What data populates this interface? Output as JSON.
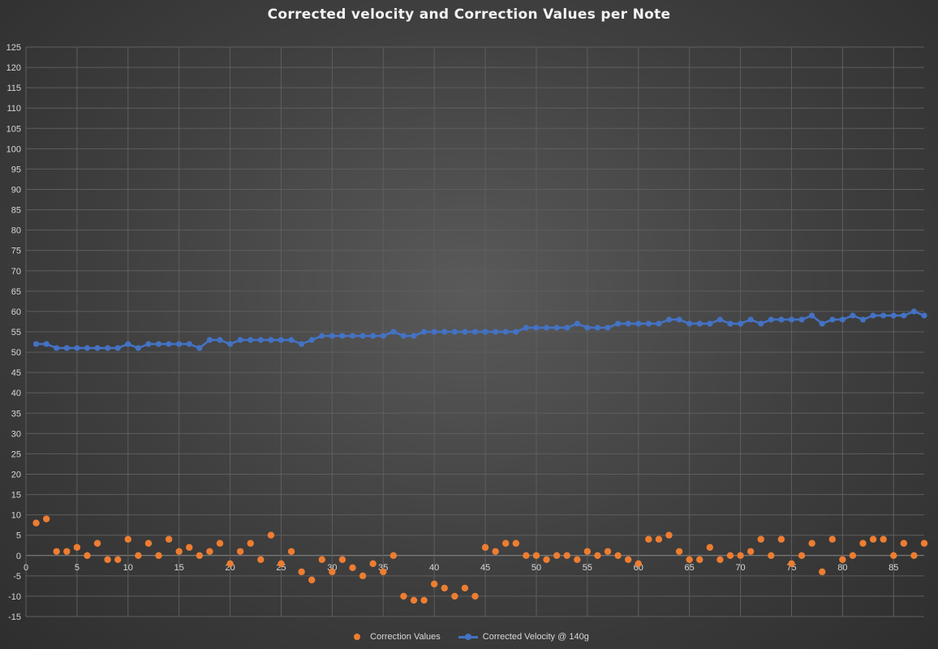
{
  "chart_data": {
    "type": "scatter",
    "title": "Corrected velocity and Correction Values per Note",
    "xlabel": "",
    "ylabel": "",
    "xlim": [
      0,
      88
    ],
    "ylim": [
      -15,
      125
    ],
    "x_ticks": [
      0,
      5,
      10,
      15,
      20,
      25,
      30,
      35,
      40,
      45,
      50,
      55,
      60,
      65,
      70,
      75,
      80,
      85
    ],
    "y_ticks": [
      -15,
      -10,
      -5,
      0,
      5,
      10,
      15,
      20,
      25,
      30,
      35,
      40,
      45,
      50,
      55,
      60,
      65,
      70,
      75,
      80,
      85,
      90,
      95,
      100,
      105,
      110,
      115,
      120,
      125
    ],
    "grid": true,
    "legend_position": "bottom",
    "series": [
      {
        "name": "Correction Values",
        "kind": "scatter",
        "color": "#ed7d31",
        "x": [
          1,
          2,
          3,
          4,
          5,
          6,
          7,
          8,
          9,
          10,
          11,
          12,
          13,
          14,
          15,
          16,
          17,
          18,
          19,
          20,
          21,
          22,
          23,
          24,
          25,
          26,
          27,
          28,
          29,
          30,
          31,
          32,
          33,
          34,
          35,
          36,
          37,
          38,
          39,
          40,
          41,
          42,
          43,
          44,
          45,
          46,
          47,
          48,
          49,
          50,
          51,
          52,
          53,
          54,
          55,
          56,
          57,
          58,
          59,
          60,
          61,
          62,
          63,
          64,
          65,
          66,
          67,
          68,
          69,
          70,
          71,
          72,
          73,
          74,
          75,
          76,
          77,
          78,
          79,
          80,
          81,
          82,
          83,
          84,
          85,
          86,
          87,
          88
        ],
        "values": [
          8,
          9,
          1,
          1,
          2,
          0,
          3,
          -1,
          -1,
          4,
          0,
          3,
          0,
          4,
          1,
          2,
          0,
          1,
          3,
          -2,
          1,
          3,
          -1,
          5,
          -2,
          1,
          -4,
          -6,
          -1,
          -4,
          -1,
          -3,
          -5,
          -2,
          -4,
          0,
          -10,
          -11,
          -11,
          -7,
          -8,
          -10,
          -8,
          -10,
          2,
          1,
          3,
          3,
          0,
          0,
          -1,
          0,
          0,
          -1,
          1,
          0,
          1,
          0,
          -1,
          -2,
          4,
          4,
          5,
          1,
          -1,
          -1,
          2,
          -1,
          0,
          0,
          1,
          4,
          0,
          4,
          -2,
          0,
          3,
          -4,
          4,
          -1,
          0,
          3,
          4,
          4,
          0,
          3,
          0,
          3
        ]
      },
      {
        "name": "Corrected Velocity @ 140g",
        "kind": "line",
        "color": "#4472c4",
        "x": [
          1,
          2,
          3,
          4,
          5,
          6,
          7,
          8,
          9,
          10,
          11,
          12,
          13,
          14,
          15,
          16,
          17,
          18,
          19,
          20,
          21,
          22,
          23,
          24,
          25,
          26,
          27,
          28,
          29,
          30,
          31,
          32,
          33,
          34,
          35,
          36,
          37,
          38,
          39,
          40,
          41,
          42,
          43,
          44,
          45,
          46,
          47,
          48,
          49,
          50,
          51,
          52,
          53,
          54,
          55,
          56,
          57,
          58,
          59,
          60,
          61,
          62,
          63,
          64,
          65,
          66,
          67,
          68,
          69,
          70,
          71,
          72,
          73,
          74,
          75,
          76,
          77,
          78,
          79,
          80,
          81,
          82,
          83,
          84,
          85,
          86,
          87,
          88
        ],
        "values": [
          52,
          52,
          51,
          51,
          51,
          51,
          51,
          51,
          51,
          52,
          51,
          52,
          52,
          52,
          52,
          52,
          51,
          53,
          53,
          52,
          53,
          53,
          53,
          53,
          53,
          53,
          52,
          53,
          54,
          54,
          54,
          54,
          54,
          54,
          54,
          55,
          54,
          54,
          55,
          55,
          55,
          55,
          55,
          55,
          55,
          55,
          55,
          55,
          56,
          56,
          56,
          56,
          56,
          57,
          56,
          56,
          56,
          57,
          57,
          57,
          57,
          57,
          58,
          58,
          57,
          57,
          57,
          58,
          57,
          57,
          58,
          57,
          58,
          58,
          58,
          58,
          59,
          57,
          58,
          58,
          59,
          58,
          59,
          59,
          59,
          59,
          60,
          59
        ]
      }
    ]
  }
}
